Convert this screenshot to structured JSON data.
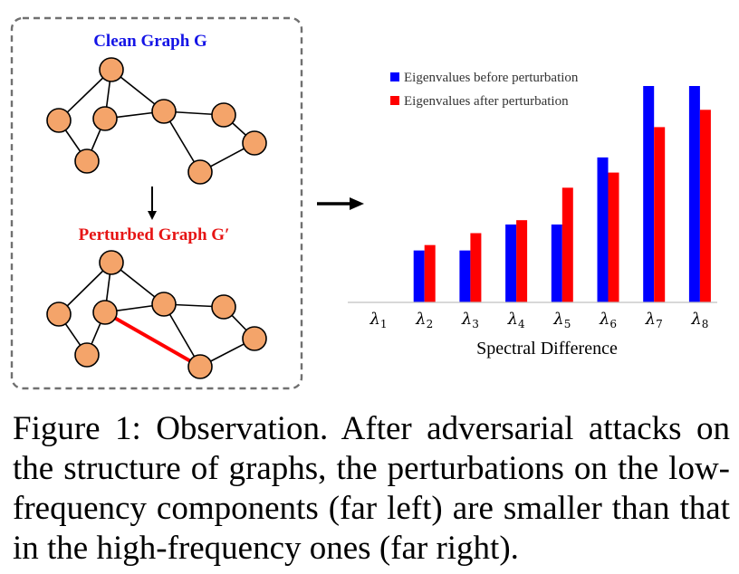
{
  "graph_panel": {
    "clean_title": "Clean Graph G",
    "perturbed_title": "Perturbed Graph G′",
    "clean_title_color": "#1414e6",
    "perturbed_title_color": "#e61414",
    "node_color": "#f4a46a",
    "perturbation_edge_color": "#ff0000"
  },
  "chart_data": {
    "type": "bar",
    "categories": [
      "λ1",
      "λ2",
      "λ3",
      "λ4",
      "λ5",
      "λ6",
      "λ7",
      "λ8"
    ],
    "category_symbol": "λ",
    "category_subscripts": [
      "1",
      "2",
      "3",
      "4",
      "5",
      "6",
      "7",
      "8"
    ],
    "series": [
      {
        "name": "Eigenvalues before perturbation",
        "color": "#0000ff",
        "values": [
          0,
          0.24,
          0.24,
          0.36,
          0.36,
          0.67,
          1.0,
          1.0
        ]
      },
      {
        "name": "Eigenvalues after perturbation",
        "color": "#ff0000",
        "values": [
          0,
          0.265,
          0.32,
          0.38,
          0.53,
          0.6,
          0.81,
          0.89
        ]
      }
    ],
    "title": "",
    "xlabel": "Spectral Difference",
    "ylabel": "",
    "ylim": [
      0,
      1.0
    ],
    "grid": false,
    "legend_position": "top-left"
  },
  "caption": "Figure 1: Observation. After adversarial attacks on the structure of graphs, the perturbations on the low-frequency components (far left) are smaller than that in the high-frequency ones (far right)."
}
